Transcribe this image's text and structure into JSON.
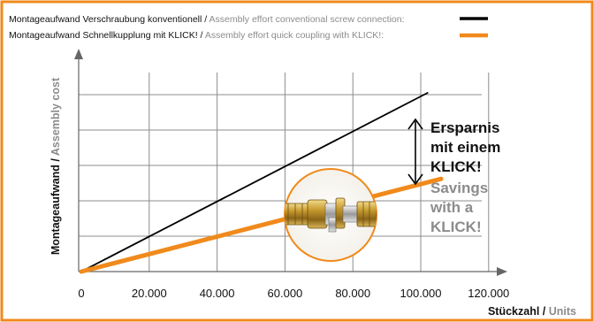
{
  "chart_data": {
    "type": "line",
    "x_ticks": [
      0,
      20000,
      40000,
      60000,
      80000,
      100000,
      120000
    ],
    "x_tick_labels": [
      "0",
      "20.000",
      "40.000",
      "60.000",
      "80.000",
      "100.000",
      "120.000"
    ],
    "xlim": [
      0,
      125000
    ],
    "ylim": [
      0,
      6.6
    ],
    "grid": true,
    "legend_placement": "top",
    "series": [
      {
        "label_de": "Montageaufwand Verschraubung konventionell",
        "label_sep": " / ",
        "label_en": "Assembly effort conventional screw connection:",
        "color": "#000000",
        "x": [
          0,
          102000
        ],
        "y": [
          0,
          5.05
        ]
      },
      {
        "label_de": "Montageaufwand Schnellkupplung mit KLICK!",
        "label_sep": " / ",
        "label_en": "Assembly effort quick coupling with KLICK!:",
        "color": "#f08a1c",
        "x": [
          0,
          106000
        ],
        "y": [
          0,
          2.62
        ]
      }
    ],
    "xlabel_de": "Stückzahl",
    "xlabel_sep": " / ",
    "xlabel_en": "Units",
    "ylabel_de": "Montageaufwand",
    "ylabel_sep": " / ",
    "ylabel_en": "Assembly cost",
    "annotation_de": [
      "Ersparnis",
      "mit einem",
      "KLICK!"
    ],
    "annotation_en": [
      "Savings",
      "with a",
      "KLICK!"
    ]
  },
  "colors": {
    "accent": "#f08a1c",
    "frame": "#f08a1c",
    "grid": "#8c8c8c",
    "muted_text": "#8c8c8c"
  },
  "icons": {
    "coupling": "quick-coupling-photo-icon"
  }
}
